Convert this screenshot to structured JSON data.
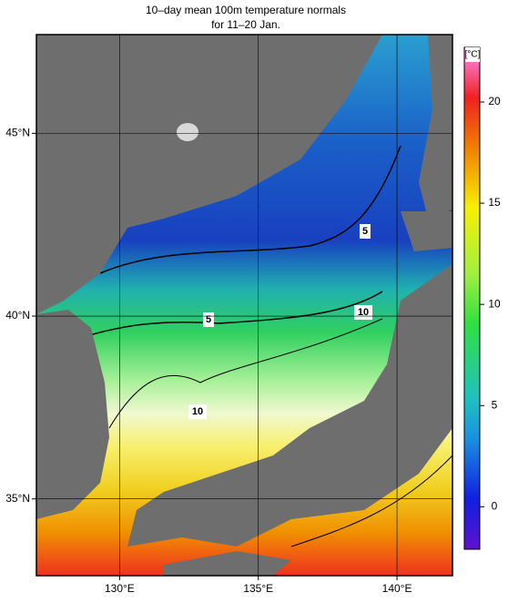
{
  "chart_data": {
    "type": "map",
    "title": "10–day mean 100m temperature normals",
    "subtitle": "for 11–20 Jan.",
    "xlim": [
      127,
      142
    ],
    "ylim": [
      32.9,
      47.7
    ],
    "xticks": [
      {
        "value": 130,
        "label": "130°E"
      },
      {
        "value": 135,
        "label": "135°E"
      },
      {
        "value": 140,
        "label": "140°E"
      }
    ],
    "yticks": [
      {
        "value": 35,
        "label": "35°N"
      },
      {
        "value": 40,
        "label": "40°N"
      },
      {
        "value": 45,
        "label": "45°N"
      }
    ],
    "grid": true,
    "contour_labels": [
      "5",
      "5",
      "10",
      "10"
    ],
    "colorbar": {
      "unit": "[°C]",
      "lim": [
        -2.1,
        22.7
      ],
      "ticks": [
        0,
        5,
        10,
        15,
        20
      ]
    }
  }
}
